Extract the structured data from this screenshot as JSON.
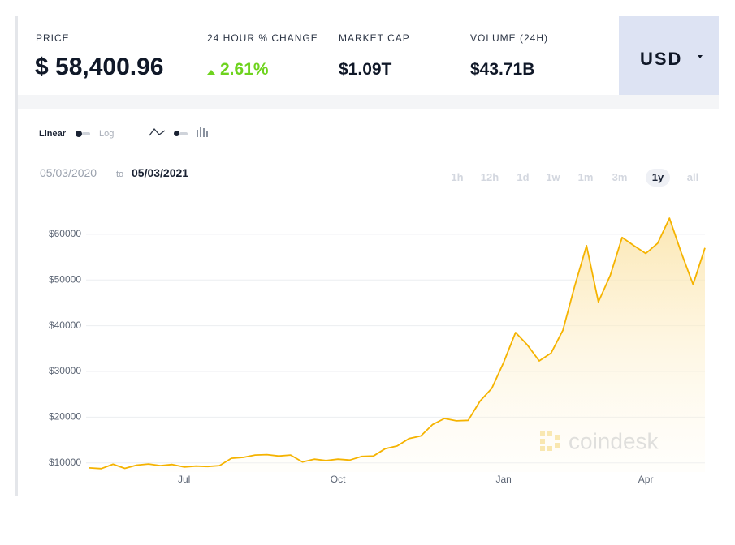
{
  "header": {
    "price_label": "PRICE",
    "price": "$ 58,400.96",
    "change_label": "24 HOUR % CHANGE",
    "change": "2.61%",
    "market_cap_label": "MARKET CAP",
    "market_cap": "$1.09T",
    "volume_label": "VOLUME (24H)",
    "volume": "$43.71B",
    "currency": "USD"
  },
  "controls": {
    "linear": "Linear",
    "log": "Log",
    "date_from": "05/03/2020",
    "date_to_word": "to",
    "date_to": "05/03/2021",
    "ranges": [
      "1h",
      "12h",
      "1d",
      "1w",
      "1m",
      "3m",
      "1y",
      "all"
    ],
    "active_range": "1y"
  },
  "watermark": "coindesk",
  "chart_data": {
    "type": "line",
    "color": "#f5b300",
    "categories": [
      null,
      null,
      null,
      null,
      null,
      null,
      null,
      null,
      "Jul",
      null,
      null,
      null,
      null,
      null,
      null,
      null,
      null,
      null,
      null,
      null,
      null,
      "Oct",
      null,
      null,
      null,
      null,
      null,
      null,
      null,
      null,
      null,
      null,
      null,
      null,
      null,
      "Jan",
      null,
      null,
      null,
      null,
      null,
      null,
      null,
      null,
      null,
      null,
      null,
      "Apr",
      null,
      null,
      null,
      null,
      null
    ],
    "values": [
      8900,
      8750,
      9700,
      8800,
      9500,
      9750,
      9400,
      9650,
      9100,
      9300,
      9200,
      9400,
      11000,
      11200,
      11700,
      11800,
      11500,
      11700,
      10200,
      10800,
      10500,
      10800,
      10600,
      11400,
      11500,
      13100,
      13700,
      15300,
      15900,
      18400,
      19700,
      19200,
      19300,
      23500,
      26300,
      32000,
      38500,
      35800,
      32300,
      34000,
      39000,
      48700,
      57500,
      45200,
      51000,
      59300,
      57500,
      55800,
      58000,
      63500,
      56000,
      49000,
      57000
    ],
    "ylim": [
      8000,
      66000
    ],
    "yticks": [
      {
        "value": 10000,
        "label": "$10000"
      },
      {
        "value": 20000,
        "label": "$20000"
      },
      {
        "value": 30000,
        "label": "$30000"
      },
      {
        "value": 40000,
        "label": "$40000"
      },
      {
        "value": 50000,
        "label": "$50000"
      },
      {
        "value": 60000,
        "label": "$60000"
      }
    ],
    "grid": true
  }
}
